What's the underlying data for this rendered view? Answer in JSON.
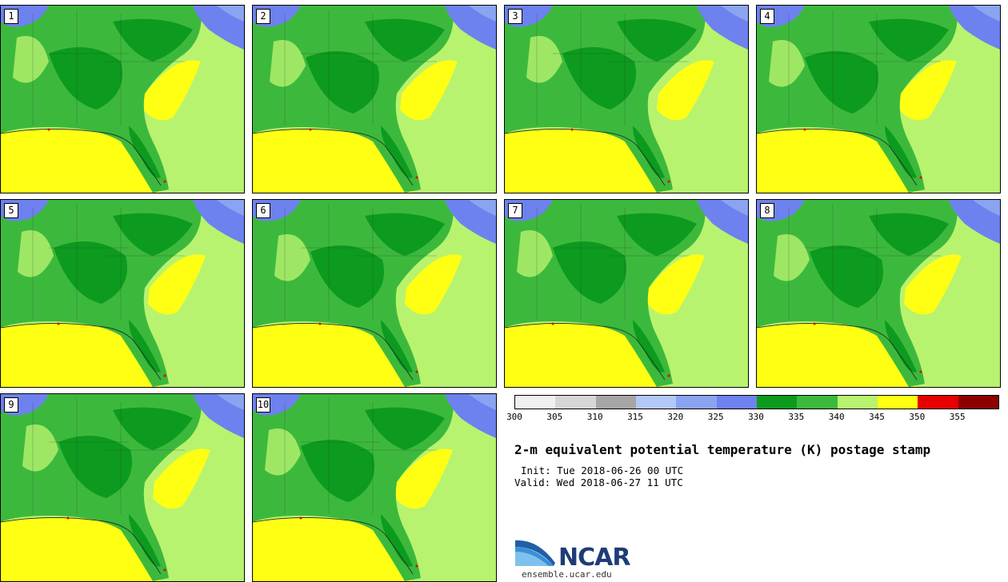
{
  "panels": [
    {
      "label": "1"
    },
    {
      "label": "2"
    },
    {
      "label": "3"
    },
    {
      "label": "4"
    },
    {
      "label": "5"
    },
    {
      "label": "6"
    },
    {
      "label": "7"
    },
    {
      "label": "8"
    },
    {
      "label": "9"
    },
    {
      "label": "10"
    }
  ],
  "colorbar": {
    "colors": [
      "#f0f0f0",
      "#d6d6d6",
      "#a6a6a6",
      "#b3c8f7",
      "#8aa4f2",
      "#6d82ee",
      "#0c9b1e",
      "#3cb93c",
      "#b7f36e",
      "#ffff14",
      "#e60000",
      "#8c0000"
    ],
    "ticks": [
      "300",
      "305",
      "310",
      "315",
      "320",
      "325",
      "330",
      "335",
      "340",
      "345",
      "350",
      "355"
    ]
  },
  "map_colors": {
    "land_dark": "#0c9b1e",
    "land_mid": "#3cb93c",
    "light_green": "#b7f36e",
    "yellow": "#ffff14",
    "blue": "#6d82ee",
    "light_blue": "#8aa4f2",
    "red": "#e60000"
  },
  "title": "2-m equivalent potential temperature (K) postage stamp",
  "init": "Init: Tue 2018-06-26 00 UTC",
  "valid": "Valid: Wed 2018-06-27 11 UTC",
  "logo": {
    "name": "NCAR",
    "url": "ensemble.ucar.edu"
  }
}
